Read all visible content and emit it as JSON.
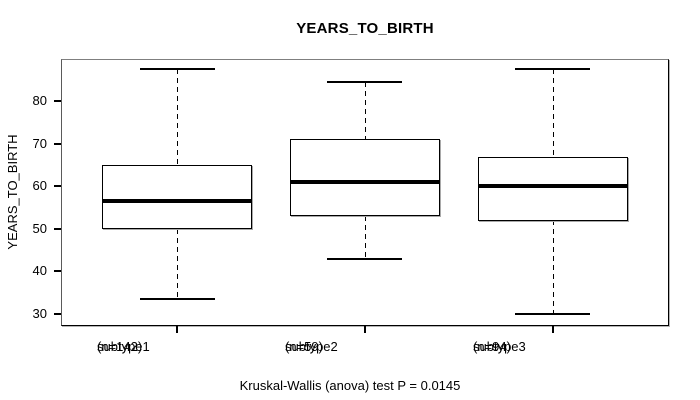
{
  "chart_data": {
    "type": "box",
    "title": "YEARS_TO_BIRTH",
    "ylabel": "YEARS_TO_BIRTH",
    "xlabel": "",
    "categories": [
      "subtype1",
      "subtype2",
      "subtype3"
    ],
    "category_sublabels": [
      "(n=142)",
      "(n=59)",
      "(n=94)"
    ],
    "groups": [
      {
        "label": "subtype1",
        "n": 142,
        "whisker_low": 33.5,
        "q1": 50,
        "median": 56.5,
        "q3": 65,
        "whisker_high": 87.5
      },
      {
        "label": "subtype2",
        "n": 59,
        "whisker_low": 43,
        "q1": 53,
        "median": 61,
        "q3": 71,
        "whisker_high": 84.5
      },
      {
        "label": "subtype3",
        "n": 94,
        "whisker_low": 30,
        "q1": 52,
        "median": 60,
        "q3": 67,
        "whisker_high": 87.5
      }
    ],
    "yticks": [
      30,
      40,
      50,
      60,
      70,
      80
    ],
    "ylim": [
      27.2,
      89.9
    ],
    "grid": false,
    "legend": false,
    "annotation": "Kruskal-Wallis (anova) test P = 0.0145",
    "colors": {
      "line": "#000000",
      "fill": "#ffffff",
      "background": "#ffffff"
    }
  }
}
